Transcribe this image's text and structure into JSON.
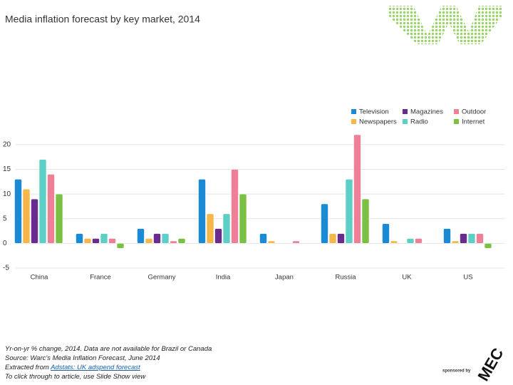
{
  "chart_data": {
    "type": "bar",
    "title": "Media inflation forecast by key market, 2014",
    "categories": [
      "China",
      "France",
      "Germany",
      "India",
      "Japan",
      "Russia",
      "UK",
      "US"
    ],
    "series": [
      {
        "name": "Television",
        "color": "#1a8ad4",
        "values": [
          13,
          2,
          3,
          13,
          2,
          8,
          4,
          3
        ]
      },
      {
        "name": "Newspapers",
        "color": "#f5b74a",
        "values": [
          11,
          1,
          1,
          6,
          0.5,
          2,
          0.5,
          0.5
        ]
      },
      {
        "name": "Magazines",
        "color": "#6a2c8c",
        "values": [
          9,
          1,
          2,
          3,
          null,
          2,
          null,
          2
        ]
      },
      {
        "name": "Radio",
        "color": "#5ccfc6",
        "values": [
          17,
          2,
          2,
          6,
          null,
          13,
          1,
          2
        ]
      },
      {
        "name": "Outdoor",
        "color": "#ef7f96",
        "values": [
          14,
          1,
          0.5,
          15,
          0.5,
          22,
          1,
          2
        ]
      },
      {
        "name": "Internet",
        "color": "#7ac143",
        "values": [
          10,
          -1,
          1,
          10,
          null,
          9,
          null,
          -1
        ]
      }
    ],
    "ylim": [
      -5,
      22
    ],
    "yticks": [
      -5,
      0,
      5,
      10,
      15,
      20
    ],
    "grid": true
  },
  "footer": {
    "notes": [
      "Yr-on-yr % change, 2014. Data are not available for Brazil or Canada",
      "Source: Warc's Media Inflation Forecast, June 2014"
    ],
    "extract_prefix": "Extracted from",
    "extract_link": "Adstats: UK adspend forecast",
    "slideshow_note": "To click through to article, use Slide Show view",
    "sponsored_by": "sponsored by",
    "sponsor_logo": "MEC"
  }
}
